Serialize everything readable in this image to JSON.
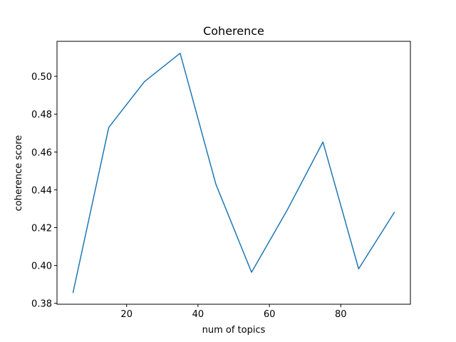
{
  "chart_data": {
    "type": "line",
    "title": "Coherence",
    "xlabel": "num of topics",
    "ylabel": "coherence score",
    "xlim": [
      0.5,
      99.5
    ],
    "ylim": [
      0.3795,
      0.5185
    ],
    "xticks": [
      20,
      40,
      60,
      80
    ],
    "yticks": [
      0.38,
      0.4,
      0.42,
      0.44,
      0.46,
      0.48,
      0.5
    ],
    "ytick_labels": [
      "0.38",
      "0.40",
      "0.42",
      "0.44",
      "0.46",
      "0.48",
      "0.50"
    ],
    "grid": false,
    "series": [
      {
        "color": "#1f77b4",
        "x": [
          5,
          15,
          25,
          35,
          45,
          55,
          65,
          75,
          85,
          95
        ],
        "y": [
          0.3857,
          0.473,
          0.4972,
          0.5122,
          0.443,
          0.3964,
          0.4293,
          0.4653,
          0.3982,
          0.4281
        ]
      }
    ]
  }
}
